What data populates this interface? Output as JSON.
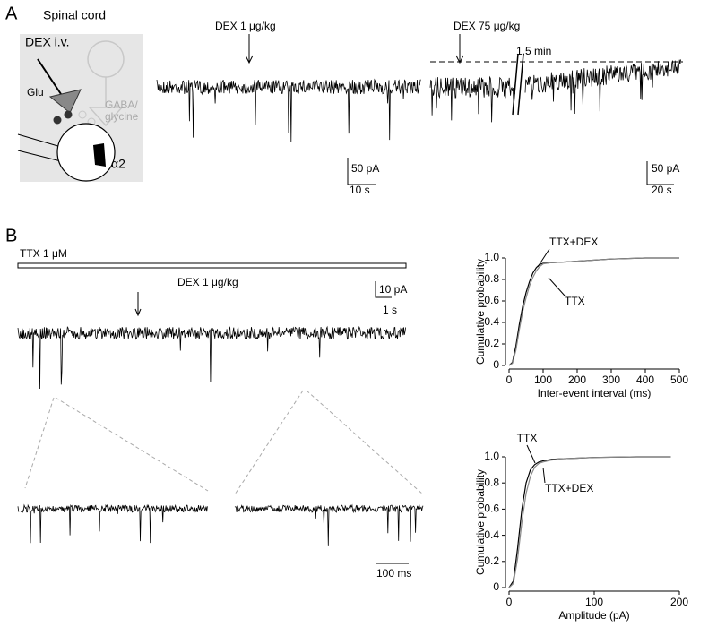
{
  "panel_a": {
    "label": "A",
    "title": "Spinal cord",
    "drug_route": "DEX i.v.",
    "glu": "Glu",
    "gaba_glycine": [
      "GABA/",
      "glycine"
    ],
    "receptor": "α2",
    "trace_1": {
      "label": "DEX 1 μg/kg",
      "scale_y": "50 pA",
      "scale_x": "10 s"
    },
    "trace_2": {
      "label": "DEX 75 μg/kg",
      "gap": "1.5 min",
      "scale_y": "50 pA",
      "scale_x": "20 s"
    }
  },
  "panel_b": {
    "label": "B",
    "bath": "TTX 1 μM",
    "drug": "DEX 1 μg/kg",
    "scale_y": "10 pA",
    "scale_x": "1 s",
    "inset_scale_x": "100 ms"
  },
  "chart_data": [
    {
      "type": "line",
      "x_label": "Inter-event interval (ms)",
      "y_label": "Cumulative probability",
      "x": [
        0,
        10,
        20,
        30,
        40,
        50,
        60,
        70,
        80,
        90,
        100,
        120,
        150,
        200,
        300,
        400,
        500
      ],
      "series": [
        {
          "name": "TTX+DEX",
          "color": "#000000",
          "values": [
            0,
            0.03,
            0.18,
            0.38,
            0.55,
            0.68,
            0.78,
            0.86,
            0.91,
            0.94,
            0.95,
            0.955,
            0.96,
            0.97,
            0.99,
            1.0,
            1.0
          ]
        },
        {
          "name": "TTX",
          "color": "#888888",
          "values": [
            0,
            0.02,
            0.14,
            0.33,
            0.5,
            0.63,
            0.74,
            0.82,
            0.88,
            0.92,
            0.945,
            0.955,
            0.96,
            0.97,
            0.99,
            1.0,
            1.0
          ]
        }
      ],
      "xlim": [
        0,
        500
      ],
      "ylim": [
        0,
        1
      ],
      "xticks": [
        0,
        100,
        200,
        300,
        400,
        500
      ],
      "yticks": [
        0,
        0.2,
        0.4,
        0.6,
        0.8,
        {
          "value": 1,
          "label": "1.0"
        }
      ]
    },
    {
      "type": "line",
      "x_label": "Amplitude (pA)",
      "y_label": "Cumulative probability",
      "x": [
        0,
        5,
        10,
        15,
        20,
        25,
        30,
        35,
        40,
        50,
        60,
        80,
        100,
        150,
        190
      ],
      "series": [
        {
          "name": "TTX",
          "color": "#000000",
          "values": [
            0,
            0.05,
            0.3,
            0.6,
            0.8,
            0.9,
            0.94,
            0.96,
            0.97,
            0.98,
            0.985,
            0.99,
            0.995,
            1.0,
            1.0
          ]
        },
        {
          "name": "TTX+DEX",
          "color": "#888888",
          "values": [
            0,
            0.03,
            0.22,
            0.5,
            0.72,
            0.85,
            0.92,
            0.95,
            0.96,
            0.975,
            0.985,
            0.99,
            0.995,
            1.0,
            1.0
          ]
        }
      ],
      "xlim": [
        0,
        200
      ],
      "ylim": [
        0,
        1
      ],
      "xticks": [
        0,
        100,
        200
      ],
      "yticks": [
        0,
        0.2,
        0.4,
        0.6,
        0.8,
        {
          "value": 1,
          "label": "1.0"
        }
      ]
    }
  ]
}
